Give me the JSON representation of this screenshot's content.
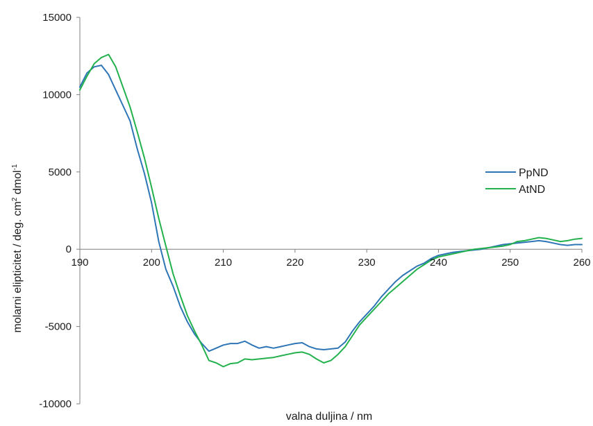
{
  "chart_data": {
    "type": "line",
    "xlabel": "valna duljina  / nm",
    "ylabel": {
      "part1": "molarni elipticitet / deg. cm",
      "sup1": "2",
      "part2": " dmol",
      "sup2": "-1"
    },
    "xlim": [
      190,
      260
    ],
    "ylim": [
      -10000,
      15000
    ],
    "xticks": [
      190,
      200,
      210,
      220,
      230,
      240,
      250,
      260
    ],
    "yticks": [
      -10000,
      -5000,
      0,
      5000,
      10000,
      15000
    ],
    "grid": false,
    "legend_position": "right",
    "series": [
      {
        "name": "PpND",
        "color": "#2e75b6",
        "points": [
          [
            190,
            10500
          ],
          [
            191,
            11400
          ],
          [
            192,
            11800
          ],
          [
            193,
            11900
          ],
          [
            194,
            11300
          ],
          [
            195,
            10300
          ],
          [
            196,
            9300
          ],
          [
            197,
            8300
          ],
          [
            198,
            6500
          ],
          [
            199,
            4900
          ],
          [
            200,
            3000
          ],
          [
            201,
            500
          ],
          [
            202,
            -1300
          ],
          [
            203,
            -2400
          ],
          [
            204,
            -3700
          ],
          [
            205,
            -4700
          ],
          [
            206,
            -5500
          ],
          [
            207,
            -6100
          ],
          [
            208,
            -6600
          ],
          [
            209,
            -6400
          ],
          [
            210,
            -6200
          ],
          [
            211,
            -6100
          ],
          [
            212,
            -6100
          ],
          [
            213,
            -5950
          ],
          [
            214,
            -6200
          ],
          [
            215,
            -6400
          ],
          [
            216,
            -6300
          ],
          [
            217,
            -6400
          ],
          [
            218,
            -6300
          ],
          [
            219,
            -6200
          ],
          [
            220,
            -6100
          ],
          [
            221,
            -6050
          ],
          [
            222,
            -6300
          ],
          [
            223,
            -6450
          ],
          [
            224,
            -6500
          ],
          [
            225,
            -6450
          ],
          [
            226,
            -6400
          ],
          [
            227,
            -6000
          ],
          [
            228,
            -5300
          ],
          [
            229,
            -4700
          ],
          [
            230,
            -4200
          ],
          [
            231,
            -3700
          ],
          [
            232,
            -3100
          ],
          [
            233,
            -2600
          ],
          [
            234,
            -2100
          ],
          [
            235,
            -1700
          ],
          [
            236,
            -1400
          ],
          [
            237,
            -1100
          ],
          [
            238,
            -900
          ],
          [
            239,
            -600
          ],
          [
            240,
            -400
          ],
          [
            241,
            -300
          ],
          [
            242,
            -200
          ],
          [
            243,
            -150
          ],
          [
            244,
            -100
          ],
          [
            245,
            -50
          ],
          [
            246,
            0
          ],
          [
            247,
            100
          ],
          [
            248,
            200
          ],
          [
            249,
            300
          ],
          [
            250,
            350
          ],
          [
            251,
            400
          ],
          [
            252,
            450
          ],
          [
            253,
            500
          ],
          [
            254,
            550
          ],
          [
            255,
            500
          ],
          [
            256,
            400
          ],
          [
            257,
            300
          ],
          [
            258,
            250
          ],
          [
            259,
            300
          ],
          [
            260,
            300
          ]
        ]
      },
      {
        "name": "AtND",
        "color": "#22b14c",
        "points": [
          [
            190,
            10300
          ],
          [
            191,
            11200
          ],
          [
            192,
            12000
          ],
          [
            193,
            12400
          ],
          [
            194,
            12600
          ],
          [
            195,
            11800
          ],
          [
            196,
            10500
          ],
          [
            197,
            9200
          ],
          [
            198,
            7600
          ],
          [
            199,
            5900
          ],
          [
            200,
            4000
          ],
          [
            201,
            2000
          ],
          [
            202,
            200
          ],
          [
            203,
            -1600
          ],
          [
            204,
            -3000
          ],
          [
            205,
            -4300
          ],
          [
            206,
            -5300
          ],
          [
            207,
            -6200
          ],
          [
            208,
            -7200
          ],
          [
            209,
            -7350
          ],
          [
            210,
            -7600
          ],
          [
            211,
            -7400
          ],
          [
            212,
            -7350
          ],
          [
            213,
            -7100
          ],
          [
            214,
            -7150
          ],
          [
            215,
            -7100
          ],
          [
            216,
            -7050
          ],
          [
            217,
            -7000
          ],
          [
            218,
            -6900
          ],
          [
            219,
            -6800
          ],
          [
            220,
            -6700
          ],
          [
            221,
            -6650
          ],
          [
            222,
            -6800
          ],
          [
            223,
            -7100
          ],
          [
            224,
            -7350
          ],
          [
            225,
            -7200
          ],
          [
            226,
            -6800
          ],
          [
            227,
            -6300
          ],
          [
            228,
            -5600
          ],
          [
            229,
            -4900
          ],
          [
            230,
            -4400
          ],
          [
            231,
            -3900
          ],
          [
            232,
            -3400
          ],
          [
            233,
            -2900
          ],
          [
            234,
            -2500
          ],
          [
            235,
            -2100
          ],
          [
            236,
            -1700
          ],
          [
            237,
            -1300
          ],
          [
            238,
            -1000
          ],
          [
            239,
            -700
          ],
          [
            240,
            -500
          ],
          [
            241,
            -400
          ],
          [
            242,
            -300
          ],
          [
            243,
            -200
          ],
          [
            244,
            -100
          ],
          [
            245,
            0
          ],
          [
            246,
            50
          ],
          [
            247,
            100
          ],
          [
            248,
            150
          ],
          [
            249,
            200
          ],
          [
            250,
            300
          ],
          [
            251,
            500
          ],
          [
            252,
            550
          ],
          [
            253,
            650
          ],
          [
            254,
            750
          ],
          [
            255,
            700
          ],
          [
            256,
            600
          ],
          [
            257,
            500
          ],
          [
            258,
            550
          ],
          [
            259,
            650
          ],
          [
            260,
            700
          ]
        ]
      }
    ]
  }
}
